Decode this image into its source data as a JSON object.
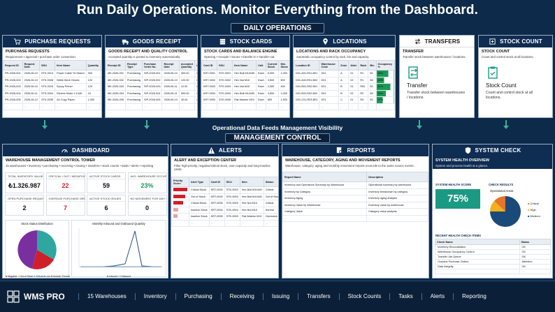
{
  "hero_title": "Run Daily Operations. Monitor Everything from the Dashboard.",
  "daily_ops_label": "DAILY OPERATIONS",
  "feeds_text": "Operational Data Feeds Management Visibility",
  "management_label": "MANAGEMENT CONTROL",
  "colors": {
    "navy": "#0f2d52",
    "teal": "#1a9a82",
    "red": "#d01f2a",
    "green": "#1a9a55"
  },
  "purchase": {
    "header": "PURCHASE REQUESTS",
    "title": "PURCHASE REQUESTS",
    "desc": "Requirement • approval • purchase order conversion.",
    "columns": [
      "Request ID",
      "Request Date",
      "SKU",
      "Item Name",
      "Quantity",
      "Unit"
    ],
    "rows": [
      [
        "PR-2026-001",
        "2026-06-10",
        "STK-0013",
        "Power Cable Tri-Strand",
        "300",
        "pcs"
      ],
      [
        "PR-2026-002",
        "2026-06-10",
        "STK-0008",
        "Nitrile Work Gloves",
        "120",
        "pair"
      ],
      [
        "PR-2026-003",
        "2026-06-10",
        "STK-0015",
        "Epoxy Primer",
        "120",
        "Kg"
      ],
      [
        "PR-2026-004",
        "2026-06-11",
        "STK-0004",
        "Electric Motor 1.5 kW",
        "24",
        "pcs"
      ],
      [
        "PR-2026-005",
        "2026-06-12",
        "STK-0035",
        "A4 Copy Paper",
        "1,000",
        "pack"
      ]
    ]
  },
  "goods": {
    "header": "GOODS RECEIPT",
    "title": "GOODS RECEIPT AND QUALITY CONTROL",
    "desc": "Accepted quantity is posted to inventory automatically.",
    "columns": [
      "Receipt ID",
      "Receipt Type",
      "Purchase Order No.",
      "Receipt Date",
      "Accepted Quantity",
      "Quality"
    ],
    "rows": [
      [
        "MK-2026-001",
        "Purchasing",
        "SIP-2026-001",
        "2026-06-10",
        "300.00",
        "Compliant"
      ],
      [
        "MK-2026-002",
        "Purchasing",
        "SIP-2026-002",
        "2026-06-10",
        "120.00",
        "Compliant"
      ],
      [
        "MK-2026-003",
        "Purchasing",
        "SIP-2026-003",
        "2026-06-11",
        "12.00",
        "Compliant"
      ],
      [
        "MK-2026-004",
        "Purchasing",
        "SIP-2026-004",
        "2026-06-11",
        "500.00",
        "Compliant"
      ],
      [
        "MK-2026-005",
        "Purchasing",
        "SIP-2026-005",
        "2026-06-13",
        "40.00",
        "Compliant"
      ]
    ]
  },
  "stock": {
    "header": "STOCK CARDS",
    "title": "STOCK CARDS AND BALANCE ENGINE",
    "desc": "Opening • receipts • issues • transfer-in • transfer-out.",
    "columns": [
      "Card ID",
      "SKU",
      "Item Name",
      "Unit",
      "Current Stock",
      "Min. Stock"
    ],
    "rows": [
      [
        "KRT-0001",
        "STK-0001",
        "Hex Bolt M10x50",
        "Each",
        "5,000",
        "1,000"
      ],
      [
        "KRT-0002",
        "STK-0002",
        "Hex Nut M10",
        "Each",
        "3,500",
        "500"
      ],
      [
        "KRT-0003",
        "STK-0003",
        "Hex Nut M10",
        "Each",
        "2,500",
        "400"
      ],
      [
        "KRT-0004",
        "STK-0004",
        "Hex Bolt M10x50",
        "Each",
        "4,500",
        "1,000"
      ],
      [
        "KRT-0005",
        "STK-0005",
        "Flat Washer M10",
        "Each",
        "800",
        "1,500"
      ]
    ]
  },
  "locations": {
    "header": "LOCATIONS",
    "title": "LOCATIONS AND RACK OCCUPANCY",
    "desc": "Automatic occupancy control by rack, bin and capacity.",
    "columns": [
      "Location ID",
      "Warehouse Code",
      "Zone",
      "Aisle",
      "Rack",
      "Bin",
      "Occupancy %"
    ],
    "rows": [
      [
        "D01-A01-R01-B01",
        "D01",
        "A",
        "01",
        "R1",
        "B1",
        "68%"
      ],
      [
        "D01-A02-R01-B02",
        "D01",
        "A",
        "02",
        "R1",
        "B2",
        "45%"
      ],
      [
        "D01-B01-R02-B01",
        "D01",
        "B",
        "01",
        "R02",
        "B1",
        "81%"
      ],
      [
        "D01-B02-R02-B02",
        "D01",
        "B",
        "02",
        "R2",
        "B2",
        "54%"
      ],
      [
        "D01-C01-R03-B01",
        "D01",
        "C",
        "01",
        "R3",
        "B1",
        "37%"
      ]
    ],
    "occupancy": [
      0.68,
      0.45,
      0.81,
      0.54,
      0.37
    ]
  },
  "transfers": {
    "header": "TRANSFERS",
    "title": "TRANSFER",
    "desc": "Transfer stock between warehouses / locations.",
    "big_title": "Transfer",
    "big_desc": "Transfer stock between warehouses / locations."
  },
  "stockcount": {
    "header": "STOCK COUNT",
    "title": "STOCK COUNT",
    "desc": "Count and control stock at all locations.",
    "big_title": "Stock Count",
    "big_desc": "Count and control stock at all locations."
  },
  "dashboard": {
    "header": "DASHBOARD",
    "title": "WAREHOUSE MANAGEMENT CONTROL TOWER",
    "desc": "15 warehouses • inventory • purchasing • receiving • issuing • transfers • stock counts • tasks • alerts • reporting",
    "kpis": [
      {
        "label": "TOTAL INVENTORY VALUE",
        "value": "₺1.326.987",
        "color": "#111"
      },
      {
        "label": "CRITICAL / OUT / NEGATIVE",
        "value": "22",
        "color": "#d01f2a"
      },
      {
        "label": "ACTIVE STOCK CARDS",
        "value": "59",
        "color": "#111"
      },
      {
        "label": "AVG. WAREHOUSE OCCUPANCY",
        "value": "23%",
        "color": "#1a9a55"
      },
      {
        "label": "OPEN PURCHASE REQUESTS",
        "value": "2",
        "color": "#111"
      },
      {
        "label": "OVERDUE PURCHASE ORDERS",
        "value": "7",
        "color": "#d01f2a"
      },
      {
        "label": "ACTIVE STOCK ISSUES",
        "value": "6",
        "color": "#111"
      },
      {
        "label": "NO MOVEMENT FOR 180+ DAYS",
        "value": "0",
        "color": "#111"
      }
    ],
    "pie_title": "Stock Status Distribution",
    "pie_legend": [
      "Negative",
      "Out of Stock",
      "Critical",
      "Low",
      "Normal / Excess"
    ],
    "line_title": "Monthly Inbound and Outbound Quantity",
    "line_legend": [
      "Inbound",
      "Outbound"
    ]
  },
  "alerts": {
    "header": "ALERTS",
    "title": "ALERT AND EXCEPTION CENTER",
    "desc": "Filter high-priority, negative/critical stock, over-capacity and long-inactive cards.",
    "columns": [
      "Priority Score",
      "Alert Type",
      "Card ID",
      "SKU",
      "Item",
      "Status"
    ],
    "rows": [
      [
        "",
        "Critical Stock",
        "KRT-0003",
        "STK-0003",
        "Hex Bolt M10x50",
        "Critical"
      ],
      [
        "",
        "Out of Stock",
        "KRT-0003",
        "STK-0003",
        "Hex Bolt M10x50",
        "Out of Stock"
      ],
      [
        "",
        "Critical Stock",
        "KRT-0005",
        "STK-0005",
        "Hex Nut M10",
        "Critical"
      ],
      [
        "",
        "Inactive Stock",
        "KRT-0004",
        "STK-0004",
        "Hex Nut M10",
        "Normal"
      ],
      [
        "",
        "Inactive Stock",
        "KRT-0005",
        "STK-0005",
        "Flat Washer M10",
        "Overstock"
      ]
    ],
    "priority_levels": [
      1.0,
      0.85,
      0.7,
      0.35,
      0.3
    ]
  },
  "reports": {
    "header": "REPORTS",
    "title": "WAREHOUSE, CATEGORY, AGING AND MOVEMENT REPORTS",
    "desc": "Warehouse, category, aging and monthly movement reports reconcile to the same source events.",
    "columns": [
      "Report Name",
      "Description"
    ],
    "rows": [
      [
        "Inventory and Operations Summary by Warehouse",
        "Operational summary by warehouse"
      ],
      [
        "Inventory by Category",
        "Inventory breakdown by category"
      ],
      [
        "Inventory Aging",
        "Inventory aging analysis"
      ],
      [
        "Inventory Value by Warehouse",
        "Inventory value by warehouse"
      ],
      [
        "Category Value",
        "Category value analysis"
      ]
    ]
  },
  "systemcheck": {
    "header": "SYSTEM CHECK",
    "title": "SYSTEM HEALTH OVERVIEW",
    "desc": "System and process health at a glance.",
    "score_label": "SYSTEM HEALTH SCORE",
    "score_value": "75%",
    "results_label": "CHECK RESULTS",
    "areas_label": "Operational Areas",
    "legend": [
      "Critical",
      "High",
      "Medium"
    ],
    "recent_label": "RECENT HEALTH CHECK ITEMS",
    "columns": [
      "Check Name",
      "Status"
    ],
    "rows": [
      [
        "Inventory Reconciliation",
        "OK"
      ],
      [
        "Warehouse Occupancy Control",
        "OK"
      ],
      [
        "Transfer Job Queue",
        "OK"
      ],
      [
        "Overdue Purchase Orders",
        "Attention"
      ],
      [
        "Data Integrity",
        "OK"
      ]
    ]
  },
  "bottom": {
    "logo": "WMS PRO",
    "items": [
      "15 Warehouses",
      "Inventory",
      "Purchasing",
      "Receiving",
      "Issuing",
      "Transfers",
      "Stock Counts",
      "Tasks",
      "Alerts",
      "Reporting"
    ]
  }
}
